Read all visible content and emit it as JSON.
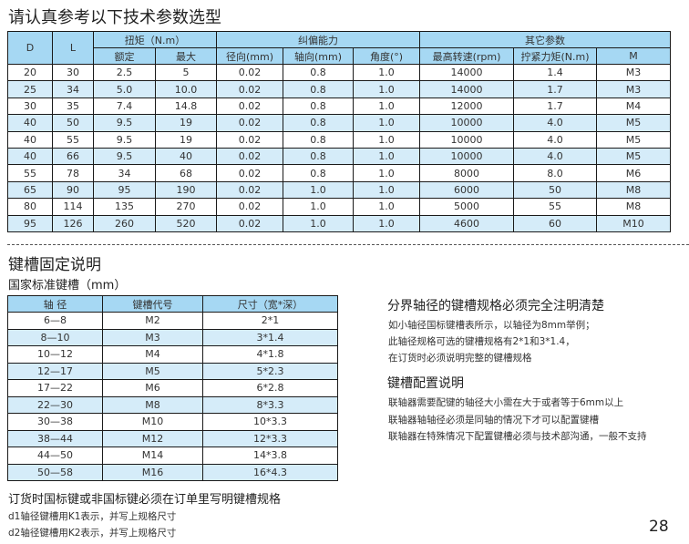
{
  "title": "请认真参考以下技术参数选型",
  "spec_table": {
    "headers": {
      "D": "D",
      "L": "L",
      "torque": "扭矩（N.m）",
      "rated": "额定",
      "max": "最大",
      "deviation": "纠偏能力",
      "radial": "径向(mm)",
      "axial": "轴向(mm)",
      "angle": "角度(°)",
      "other": "其它参数",
      "max_speed": "最高转速(rpm)",
      "tightening_torque": "拧紧力矩(N.m)",
      "M": "M"
    },
    "rows": [
      [
        "20",
        "30",
        "2.5",
        "5",
        "0.02",
        "0.8",
        "1.0",
        "14000",
        "1.4",
        "M3"
      ],
      [
        "25",
        "34",
        "5.0",
        "10.0",
        "0.02",
        "0.8",
        "1.0",
        "14000",
        "1.7",
        "M3"
      ],
      [
        "30",
        "35",
        "7.4",
        "14.8",
        "0.02",
        "0.8",
        "1.0",
        "12000",
        "1.7",
        "M4"
      ],
      [
        "40",
        "50",
        "9.5",
        "19",
        "0.02",
        "0.8",
        "1.0",
        "10000",
        "4.0",
        "M5"
      ],
      [
        "40",
        "55",
        "9.5",
        "19",
        "0.02",
        "0.8",
        "1.0",
        "10000",
        "4.0",
        "M5"
      ],
      [
        "40",
        "66",
        "9.5",
        "40",
        "0.02",
        "0.8",
        "1.0",
        "10000",
        "4.0",
        "M5"
      ],
      [
        "55",
        "78",
        "34",
        "68",
        "0.02",
        "0.8",
        "1.0",
        "8000",
        "8.0",
        "M6"
      ],
      [
        "65",
        "90",
        "95",
        "190",
        "0.02",
        "1.0",
        "1.0",
        "6000",
        "50",
        "M8"
      ],
      [
        "80",
        "114",
        "135",
        "270",
        "0.02",
        "1.0",
        "1.0",
        "5000",
        "55",
        "M8"
      ],
      [
        "95",
        "126",
        "260",
        "520",
        "0.02",
        "1.0",
        "1.0",
        "4600",
        "60",
        "M10"
      ]
    ]
  },
  "keyway": {
    "title": "键槽固定说明",
    "subtitle": "国家标准键槽（mm）",
    "headers": [
      "轴 径",
      "键槽代号",
      "尺寸（宽*深）"
    ],
    "rows": [
      [
        "6—8",
        "M2",
        "2*1"
      ],
      [
        "8—10",
        "M3",
        "3*1.4"
      ],
      [
        "10—12",
        "M4",
        "4*1.8"
      ],
      [
        "12—17",
        "M5",
        "5*2.3"
      ],
      [
        "17—22",
        "M6",
        "6*2.8"
      ],
      [
        "22—30",
        "M8",
        "8*3.3"
      ],
      [
        "30—38",
        "M10",
        "10*3.3"
      ],
      [
        "38—44",
        "M12",
        "12*3.3"
      ],
      [
        "44—50",
        "M14",
        "14*3.8"
      ],
      [
        "50—58",
        "M16",
        "16*4.3"
      ]
    ]
  },
  "notes": {
    "boundary_title": "分界轴径的键槽规格必须完全注明清楚",
    "boundary_lines": [
      "如小轴径国标键槽表所示，以轴径为8mm举例；",
      "此轴径规格可选的键槽规格有2*1和3*1.4，",
      "在订货时必须说明完整的键槽规格"
    ],
    "config_title": "键槽配置说明",
    "config_lines": [
      "联轴器需要配键的轴径大小需在大于或者等于6mm以上",
      "联轴器轴轴径必须是同轴的情况下才可以配置键槽",
      "联轴器在特殊情况下配置键槽必须与技术部沟通，一般不支持"
    ],
    "order_title": "订货时国标键或非国标键必须在订单里写明键槽规格",
    "order_lines": [
      "d1轴径键槽用K1表示，并写上规格尺寸",
      "d2轴径键槽用K2表示，并写上规格尺寸"
    ]
  },
  "page_number": "28",
  "colors": {
    "header": "#a6d8f3",
    "alt_row": "#d5ecf9"
  }
}
